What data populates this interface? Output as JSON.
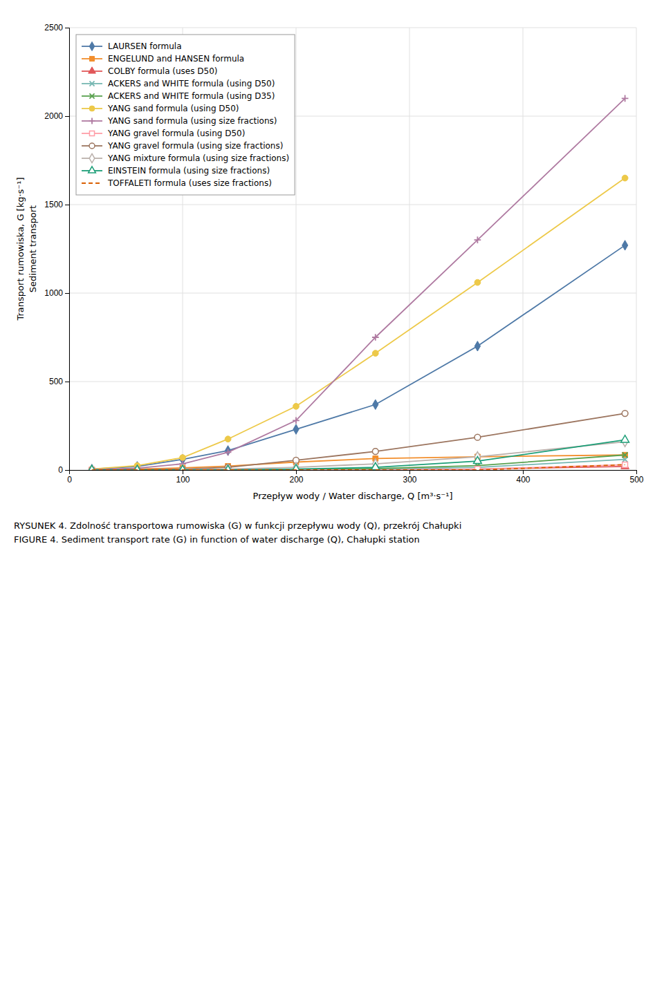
{
  "chart_data": {
    "type": "line",
    "title": "RYSUNEK 4. Zdolność transportowa rumowiska (G) w funkcji przepływu wody (Q), przekrój Chałupki",
    "subtitle": "FIGURE 4. Sediment transport rate (G) in function of water discharge (Q), Chałupki station",
    "xlabel": "Przepływ wody / Water discharge, Q [m³·s⁻¹]",
    "ylabel": [
      "Transport rumowiska, G [kg·s⁻¹]",
      "Sediment transport"
    ],
    "x": [
      20,
      60,
      100,
      140,
      200,
      270,
      360,
      490
    ],
    "xlim": [
      0,
      500
    ],
    "ylim": [
      0,
      2500
    ],
    "xticks": [
      0,
      100,
      200,
      300,
      400,
      500
    ],
    "yticks": [
      0,
      500,
      1000,
      1500,
      2000,
      2500
    ],
    "grid": true,
    "legend": "upper left",
    "series": [
      {
        "name": "LAURSEN formula",
        "values": [
          5,
          20,
          60,
          110,
          230,
          370,
          700,
          1270
        ],
        "marker": "diamond",
        "line_style": "solid"
      },
      {
        "name": "ENGELUND and HANSEN formula",
        "values": [
          2,
          5,
          12,
          22,
          45,
          65,
          75,
          85
        ],
        "marker": "square",
        "line_style": "solid"
      },
      {
        "name": "COLBY formula (uses D50)",
        "values": [
          0,
          0,
          0,
          0,
          0,
          0,
          5,
          20
        ],
        "marker": "triangle",
        "line_style": "solid"
      },
      {
        "name": "ACKERS and WHITE formula (using D50)",
        "values": [
          0,
          0,
          0,
          0,
          0,
          5,
          15,
          60
        ],
        "marker": "x",
        "line_style": "solid"
      },
      {
        "name": "ACKERS and WHITE formula (using D35)",
        "values": [
          0,
          0,
          0,
          0,
          2,
          8,
          25,
          85
        ],
        "marker": "x",
        "line_style": "solid"
      },
      {
        "name": "YANG sand formula (using D50)",
        "values": [
          5,
          25,
          70,
          175,
          360,
          660,
          1060,
          1650
        ],
        "marker": "circle",
        "line_style": "solid"
      },
      {
        "name": "YANG sand formula (using size fractions)",
        "values": [
          2,
          10,
          35,
          100,
          280,
          750,
          1300,
          2100
        ],
        "marker": "plus",
        "line_style": "solid"
      },
      {
        "name": "YANG gravel formula (using D50)",
        "values": [
          0,
          0,
          0,
          0,
          0,
          0,
          5,
          30
        ],
        "marker": "square-open",
        "line_style": "solid"
      },
      {
        "name": "YANG gravel formula (using size fractions)",
        "values": [
          0,
          2,
          5,
          15,
          55,
          105,
          185,
          320
        ],
        "marker": "circle-open",
        "line_style": "solid"
      },
      {
        "name": "YANG mixture formula (using size fractions)",
        "values": [
          0,
          0,
          2,
          5,
          15,
          35,
          75,
          160
        ],
        "marker": "diamond-open",
        "line_style": "solid"
      },
      {
        "name": "EINSTEIN formula (using size fractions)",
        "values": [
          0,
          0,
          0,
          0,
          5,
          15,
          50,
          170
        ],
        "marker": "triangle-open",
        "line_style": "solid"
      },
      {
        "name": "TOFFALETI formula (uses size fractions)",
        "values": [
          0,
          0,
          0,
          0,
          0,
          0,
          0,
          30
        ],
        "line_style": "dashed"
      }
    ]
  }
}
